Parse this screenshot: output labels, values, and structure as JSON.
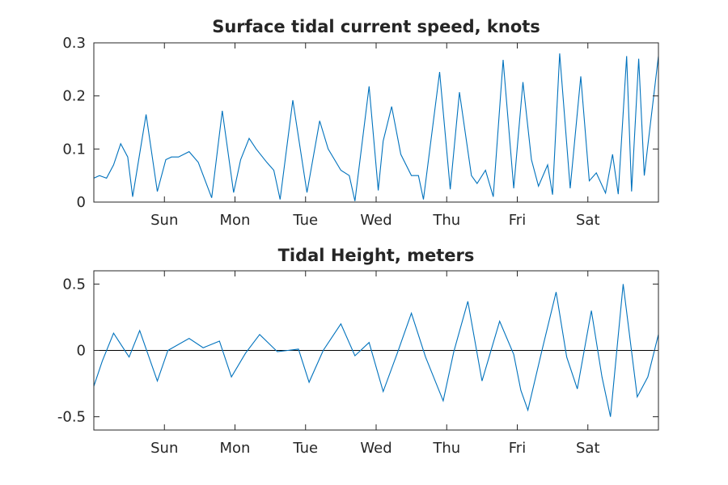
{
  "colors": {
    "series": "#0072BD",
    "axis": "#262626",
    "zero_line": "#000000",
    "background": "#ffffff"
  },
  "chart_data": [
    {
      "type": "line",
      "title": "Surface tidal current speed, knots",
      "xlabel": "",
      "ylabel": "",
      "x_unit": "days",
      "xlim": [
        0,
        8
      ],
      "ylim": [
        0,
        0.3
      ],
      "yticks": [
        0,
        0.1,
        0.2,
        0.3
      ],
      "ytick_labels": [
        "0",
        "0.1",
        "0.2",
        "0.3"
      ],
      "xticks": [
        1,
        2,
        3,
        4,
        5,
        6,
        7
      ],
      "xtick_labels": [
        "Sun",
        "Mon",
        "Tue",
        "Wed",
        "Thu",
        "Fri",
        "Sat"
      ],
      "grid": false,
      "series": [
        {
          "x": [
            0,
            0.08,
            0.18,
            0.28,
            0.38,
            0.48,
            0.55,
            0.74,
            0.9,
            1.02,
            1.1,
            1.2,
            1.35,
            1.48,
            1.67,
            1.82,
            1.98,
            2.08,
            2.2,
            2.3,
            2.45,
            2.55,
            2.64,
            2.82,
            3.02,
            3.2,
            3.32,
            3.5,
            3.62,
            3.7,
            3.9,
            4.03,
            4.1,
            4.22,
            4.35,
            4.5,
            4.6,
            4.67,
            4.9,
            5.05,
            5.18,
            5.35,
            5.43,
            5.55,
            5.66,
            5.8,
            5.95,
            6.08,
            6.2,
            6.3,
            6.43,
            6.5,
            6.6,
            6.75,
            6.9,
            7.02,
            7.12,
            7.25,
            7.35,
            7.43,
            7.55,
            7.62,
            7.72,
            7.8,
            8.0
          ],
          "y": [
            0.045,
            0.05,
            0.045,
            0.07,
            0.11,
            0.085,
            0.01,
            0.165,
            0.02,
            0.08,
            0.085,
            0.085,
            0.095,
            0.075,
            0.008,
            0.172,
            0.018,
            0.08,
            0.12,
            0.1,
            0.075,
            0.06,
            0.005,
            0.192,
            0.018,
            0.153,
            0.1,
            0.06,
            0.05,
            0.002,
            0.218,
            0.022,
            0.115,
            0.18,
            0.09,
            0.05,
            0.05,
            0.005,
            0.245,
            0.024,
            0.207,
            0.05,
            0.035,
            0.06,
            0.01,
            0.268,
            0.026,
            0.226,
            0.08,
            0.03,
            0.07,
            0.014,
            0.28,
            0.026,
            0.237,
            0.04,
            0.055,
            0.017,
            0.09,
            0.015,
            0.275,
            0.02,
            0.27,
            0.05,
            0.275
          ]
        }
      ]
    },
    {
      "type": "line",
      "title": "Tidal Height, meters",
      "xlabel": "",
      "ylabel": "",
      "x_unit": "days",
      "xlim": [
        0,
        8
      ],
      "ylim": [
        -0.6,
        0.6
      ],
      "yticks": [
        -0.5,
        0,
        0.5
      ],
      "ytick_labels": [
        "-0.5",
        "0",
        "0.5"
      ],
      "xticks": [
        1,
        2,
        3,
        4,
        5,
        6,
        7
      ],
      "xtick_labels": [
        "Sun",
        "Mon",
        "Tue",
        "Wed",
        "Thu",
        "Fri",
        "Sat"
      ],
      "grid": false,
      "zero_line": true,
      "series": [
        {
          "x": [
            0,
            0.12,
            0.28,
            0.5,
            0.65,
            0.9,
            1.05,
            1.35,
            1.55,
            1.78,
            1.95,
            2.15,
            2.35,
            2.6,
            2.75,
            2.9,
            3.05,
            3.25,
            3.5,
            3.7,
            3.9,
            4.1,
            4.3,
            4.5,
            4.7,
            4.95,
            5.1,
            5.3,
            5.5,
            5.75,
            5.95,
            6.05,
            6.15,
            6.35,
            6.55,
            6.7,
            6.85,
            7.05,
            7.2,
            7.32,
            7.5,
            7.7,
            7.85,
            8.0
          ],
          "y": [
            -0.27,
            -0.08,
            0.13,
            -0.05,
            0.15,
            -0.23,
            0.0,
            0.09,
            0.02,
            0.07,
            -0.2,
            -0.02,
            0.12,
            -0.01,
            0.0,
            0.01,
            -0.24,
            0.0,
            0.2,
            -0.04,
            0.06,
            -0.31,
            -0.02,
            0.28,
            -0.05,
            -0.38,
            -0.01,
            0.37,
            -0.23,
            0.22,
            -0.03,
            -0.3,
            -0.45,
            0.0,
            0.44,
            -0.05,
            -0.29,
            0.3,
            -0.2,
            -0.5,
            0.5,
            -0.35,
            -0.2,
            0.12
          ]
        }
      ]
    }
  ]
}
